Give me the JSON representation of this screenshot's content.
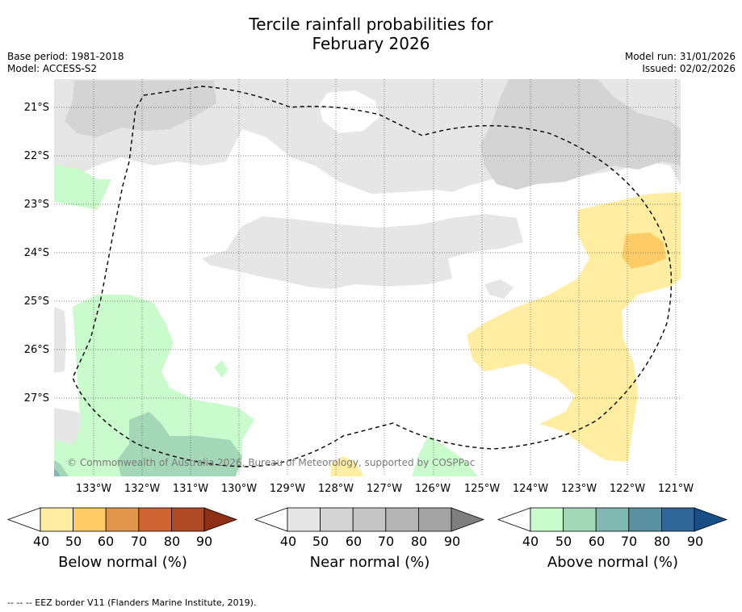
{
  "header": {
    "title_line1": "Tercile rainfall probabilities for",
    "title_line2": "February 2026",
    "base_period": "Base period: 1981-2018",
    "model": "Model: ACCESS-S2",
    "model_run": "Model run: 31/01/2026",
    "issued": "Issued: 02/02/2026"
  },
  "map": {
    "lat_labels": [
      "21°S",
      "22°S",
      "23°S",
      "24°S",
      "25°S",
      "26°S",
      "27°S"
    ],
    "lon_labels": [
      "133°W",
      "132°W",
      "131°W",
      "130°W",
      "129°W",
      "128°W",
      "127°W",
      "126°W",
      "125°W",
      "124°W",
      "123°W",
      "122°W",
      "121°W"
    ],
    "copyright": "© Commonwealth of Australia 2026, Bureau of Meteorology, supported by COSPPac",
    "grid": true
  },
  "colorbars": [
    {
      "title": "Below normal (%)",
      "ticks": [
        "40",
        "50",
        "60",
        "70",
        "80",
        "90"
      ],
      "colors": [
        "#ffeea1",
        "#fecc67",
        "#e0954a",
        "#cf6532",
        "#b04926",
        "#8d3015"
      ]
    },
    {
      "title": "Near normal (%)",
      "ticks": [
        "40",
        "50",
        "60",
        "70",
        "80",
        "90"
      ],
      "colors": [
        "#e6e6e6",
        "#d4d4d4",
        "#c6c6c6",
        "#b4b4b4",
        "#a3a3a3",
        "#7f7f7f"
      ]
    },
    {
      "title": "Above normal (%)",
      "ticks": [
        "40",
        "50",
        "60",
        "70",
        "80",
        "90"
      ],
      "colors": [
        "#c9fbcc",
        "#a3d7b8",
        "#82b8b2",
        "#5991a1",
        "#2f6799",
        "#154f86"
      ]
    }
  ],
  "footnote": "--  --  -- EEZ border V11 (Flanders Marine Institute, 2019)."
}
